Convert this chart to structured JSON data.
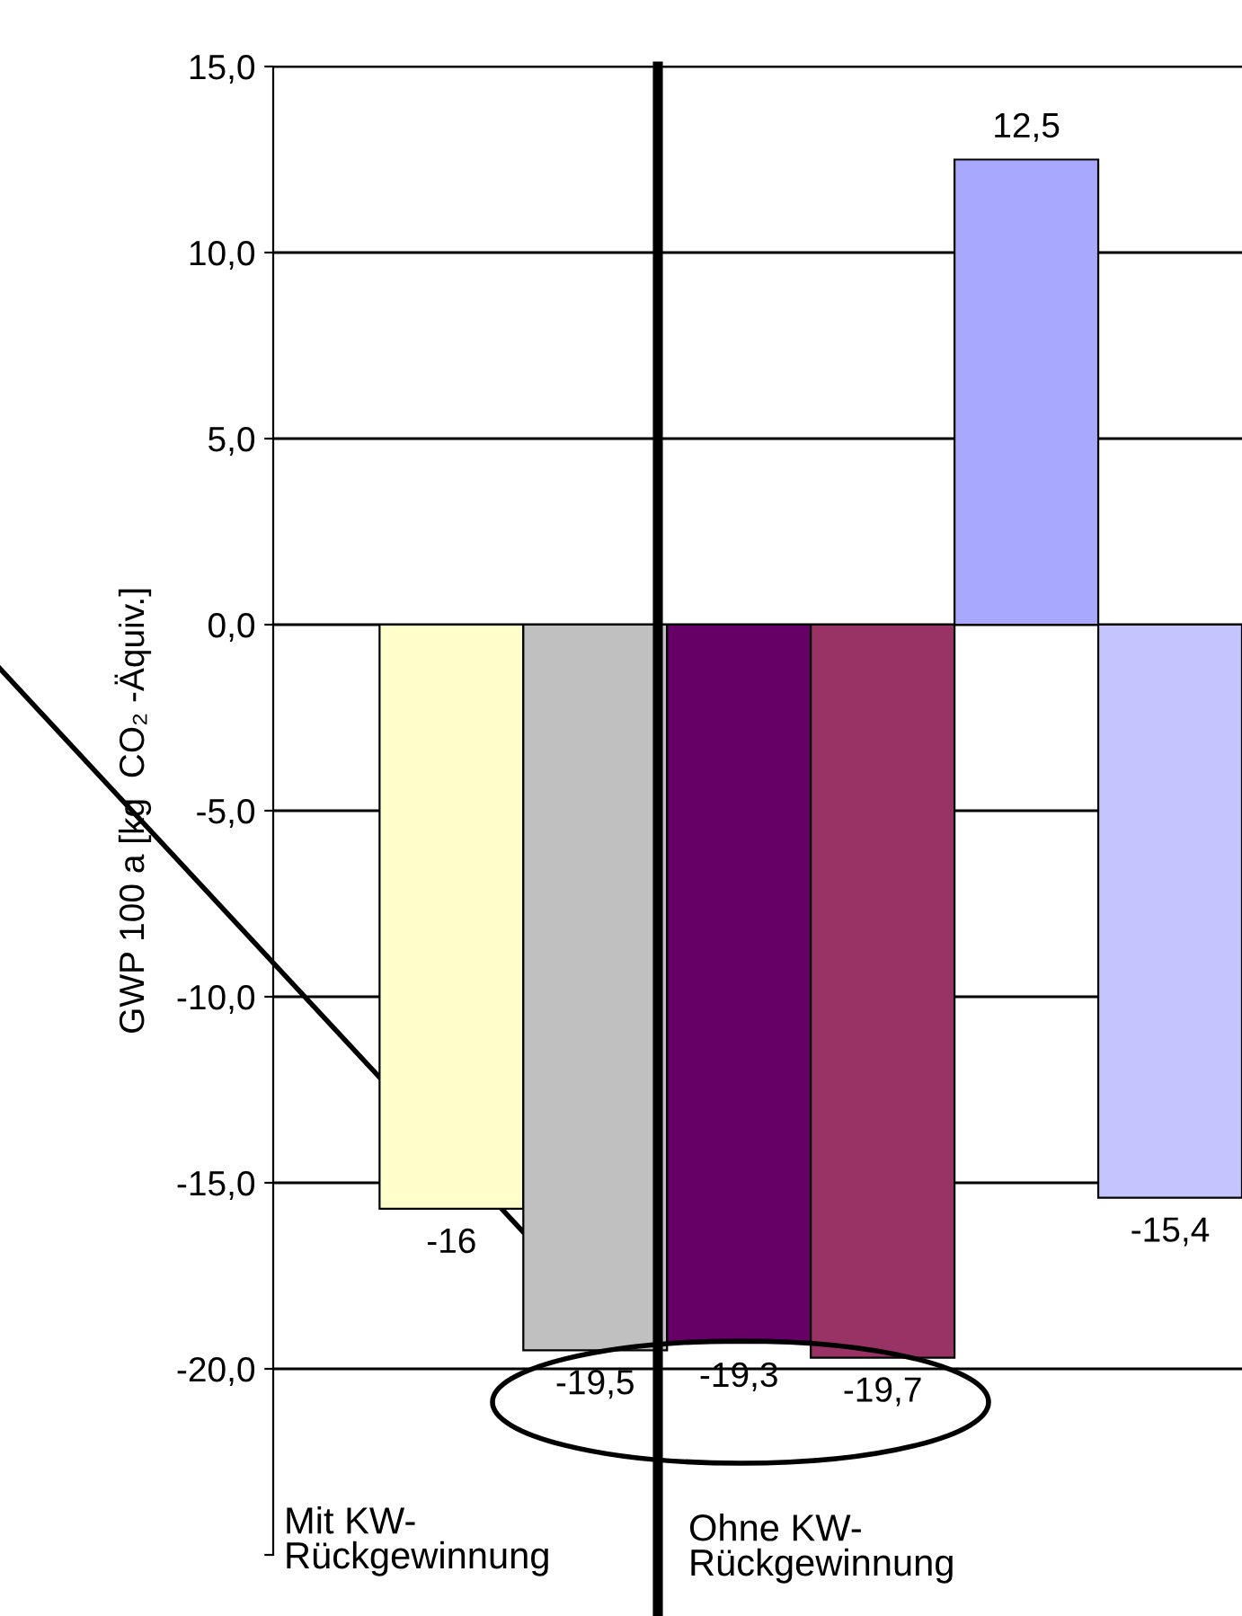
{
  "chart_data": {
    "type": "bar",
    "ylabel": "GWP 100 a [kg  CO₂ -Äquiv.]",
    "categories": [
      null,
      null,
      null,
      null,
      null,
      null,
      null
    ],
    "values": [
      null,
      -15.7,
      -19.5,
      -19.3,
      -19.7,
      12.5,
      -15.4
    ],
    "value_labels": [
      null,
      "-16",
      "-19,5",
      "-19,3",
      "-19,7",
      "12,5",
      "-15,4"
    ],
    "colors": [
      null,
      "#ffffcc",
      "#c0c0c0",
      "#660066",
      "#993366",
      "#a8a8ff",
      "#c4c4ff"
    ],
    "ylim": [
      -25,
      15
    ],
    "yticks": [
      {
        "value": 15,
        "label": "15,0"
      },
      {
        "value": 10,
        "label": "10,0"
      },
      {
        "value": 5,
        "label": "5,0"
      },
      {
        "value": 0,
        "label": "0,0"
      },
      {
        "value": -5,
        "label": "-5,0"
      },
      {
        "value": -10,
        "label": "-10,0"
      },
      {
        "value": -15,
        "label": "-15,0"
      },
      {
        "value": -20,
        "label": "-20,0"
      },
      {
        "value": -25,
        "label": null
      }
    ],
    "grid": "y",
    "annotations": [
      "Mit KW-\nRückgewinnung",
      "Ohne KW-\nRückgewinnung"
    ]
  }
}
